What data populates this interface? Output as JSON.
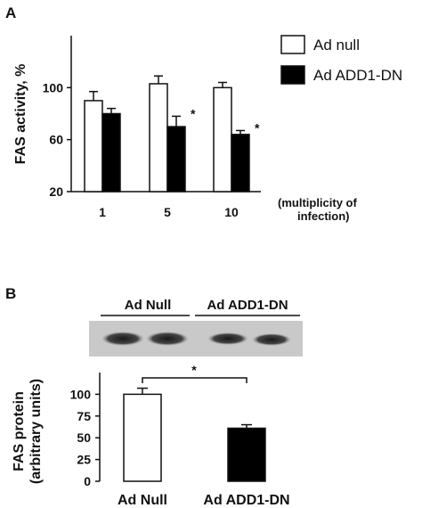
{
  "panel_a": {
    "label": "A",
    "ylabel": "FAS activity, %",
    "note_line1": "(multiplicity of",
    "note_line2": "infection)",
    "chart_data": {
      "type": "bar",
      "categories": [
        "1",
        "5",
        "10"
      ],
      "ylim": [
        20,
        140
      ],
      "yticks": [
        20,
        60,
        100
      ],
      "series": [
        {
          "name": "Ad null",
          "fill": "#ffffff",
          "values": [
            90,
            103,
            100
          ],
          "errors": [
            7,
            6,
            4
          ]
        },
        {
          "name": "Ad ADD1-DN",
          "fill": "#000000",
          "values": [
            80,
            70,
            64
          ],
          "errors": [
            4,
            8,
            3
          ]
        }
      ],
      "significance": [
        "",
        "*",
        "*"
      ],
      "legend": "top-right"
    }
  },
  "panel_b": {
    "label": "B",
    "blot_labels": [
      "Ad Null",
      "Ad ADD1-DN"
    ],
    "ylabel_line1": "FAS protein",
    "ylabel_line2": "(arbitrary units)",
    "significance": "*",
    "chart_data": {
      "type": "bar",
      "categories": [
        "Ad Null",
        "Ad ADD1-DN"
      ],
      "values": [
        100,
        61
      ],
      "errors": [
        7,
        4
      ],
      "fills": [
        "#ffffff",
        "#000000"
      ],
      "ylim": [
        0,
        125
      ],
      "yticks": [
        0,
        25,
        50,
        75,
        100
      ]
    }
  }
}
